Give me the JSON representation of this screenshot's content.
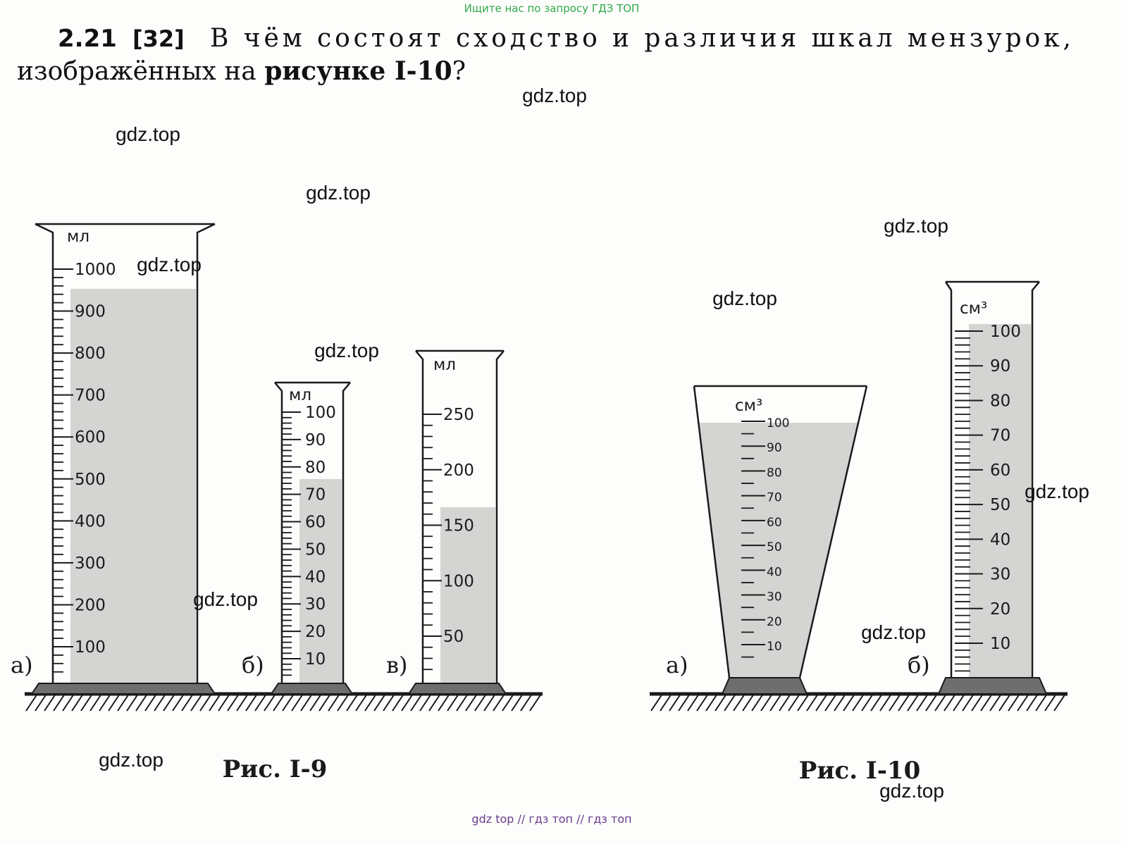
{
  "header": {
    "watermark": "Ищите нас по запросу ГДЗ ТОП"
  },
  "problem": {
    "number": "2.21",
    "ref": "[32]",
    "line1": "В чём состоят сходство и различия шкал мензурок,",
    "line2": "изображённых на",
    "figure_ref": "рисунке I-10",
    "end": "?"
  },
  "figures": [
    {
      "caption": "Рис. I-9",
      "cylinders": [
        {
          "letter": "а)",
          "unit": "мл",
          "labels": [
            1000,
            900,
            800,
            700,
            600,
            500,
            400,
            300,
            200,
            100
          ]
        },
        {
          "letter": "б)",
          "unit": "мл",
          "labels": [
            100,
            90,
            80,
            70,
            60,
            50,
            40,
            30,
            20,
            10
          ]
        },
        {
          "letter": "в)",
          "unit": "мл",
          "labels": [
            250,
            200,
            150,
            100,
            50
          ]
        }
      ]
    },
    {
      "caption": "Рис. I-10",
      "cylinders": [
        {
          "letter": "а)",
          "unit": "см³",
          "labels": [
            100,
            90,
            80,
            70,
            60,
            50,
            40,
            30,
            20,
            10
          ]
        },
        {
          "letter": "б)",
          "unit": "см³",
          "labels": [
            100,
            90,
            80,
            70,
            60,
            50,
            40,
            30,
            20,
            10
          ]
        }
      ]
    }
  ],
  "watermarks": [
    "gdz.top",
    "gdz.top",
    "gdz.top",
    "gdz.top",
    "gdz.top",
    "gdz.top",
    "gdz.top",
    "gdz.top",
    "gdz.top",
    "gdz.top",
    "gdz.top",
    "gdz.top"
  ],
  "footer": "gdz top // гдз топ // гдз топ"
}
